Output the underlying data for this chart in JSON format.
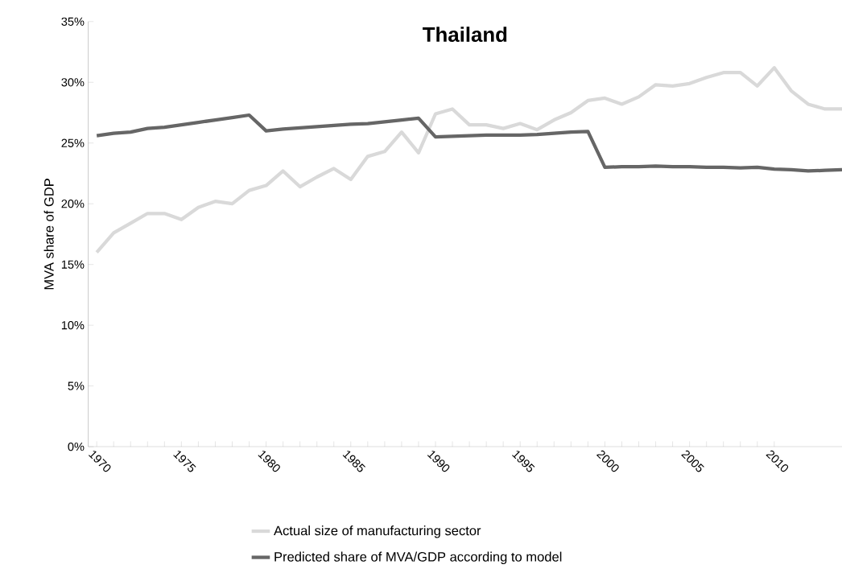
{
  "chart_data": {
    "type": "line",
    "title": "Thailand",
    "ylabel": "MVA share of GDP",
    "x": [
      1970,
      1971,
      1972,
      1973,
      1974,
      1975,
      1976,
      1977,
      1978,
      1979,
      1980,
      1981,
      1982,
      1983,
      1984,
      1985,
      1986,
      1987,
      1988,
      1989,
      1990,
      1991,
      1992,
      1993,
      1994,
      1995,
      1996,
      1997,
      1998,
      1999,
      2000,
      2001,
      2002,
      2003,
      2004,
      2005,
      2006,
      2007,
      2008,
      2009,
      2010,
      2011,
      2012,
      2013,
      2014
    ],
    "xlim": [
      1969.5,
      2014
    ],
    "xticks": [
      1970,
      1975,
      1980,
      1985,
      1990,
      1995,
      2000,
      2005,
      2010
    ],
    "ylim": [
      0,
      35
    ],
    "yticks": [
      {
        "value": 0,
        "label": "0%"
      },
      {
        "value": 5,
        "label": "5%"
      },
      {
        "value": 10,
        "label": "10%"
      },
      {
        "value": 15,
        "label": "15%"
      },
      {
        "value": 20,
        "label": "20%"
      },
      {
        "value": 25,
        "label": "25%"
      },
      {
        "value": 30,
        "label": "30%"
      },
      {
        "value": 35,
        "label": "35%"
      }
    ],
    "grid": false,
    "legend": "bottom",
    "marker": "none",
    "line_style": "solid",
    "series": [
      {
        "name": "Actual size of manufacturing sector",
        "color": "#d9d9d9",
        "values": [
          16.0,
          17.6,
          18.4,
          19.2,
          19.2,
          18.7,
          19.7,
          20.2,
          20.0,
          21.1,
          21.5,
          22.7,
          21.4,
          22.2,
          22.9,
          22.0,
          23.9,
          24.3,
          25.9,
          24.2,
          27.4,
          27.8,
          26.5,
          26.5,
          26.2,
          26.6,
          26.1,
          26.9,
          27.5,
          28.5,
          28.7,
          28.2,
          28.8,
          29.8,
          29.7,
          29.9,
          30.4,
          30.8,
          30.8,
          29.7,
          31.2,
          29.3,
          28.2,
          27.8,
          27.8
        ]
      },
      {
        "name": "Predicted share of MVA/GDP according to model",
        "color": "#666666",
        "values": [
          25.6,
          25.8,
          25.9,
          26.2,
          26.3,
          26.5,
          26.7,
          26.9,
          27.1,
          27.3,
          26.0,
          26.15,
          26.25,
          26.35,
          26.45,
          26.55,
          26.6,
          26.75,
          26.9,
          27.05,
          25.5,
          25.55,
          25.6,
          25.65,
          25.65,
          25.65,
          25.7,
          25.8,
          25.9,
          25.95,
          23.0,
          23.05,
          23.05,
          23.1,
          23.05,
          23.05,
          23.0,
          23.0,
          22.95,
          23.0,
          22.85,
          22.8,
          22.7,
          22.75,
          22.8
        ]
      }
    ]
  }
}
